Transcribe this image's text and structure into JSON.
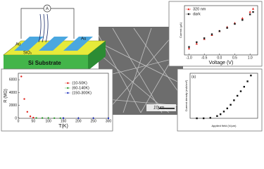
{
  "device": {
    "ammeter": "A",
    "electrode_left": "Au",
    "electrode_right": "Au",
    "oxide": "SiO₂",
    "substrate": "Si Substrate"
  },
  "sem": {
    "scale": "10μm"
  },
  "chart_data": [
    {
      "type": "scatter",
      "x_label": "Voltage (V)",
      "y_label": "Current (μA)",
      "xlim": [
        -1.15,
        1.25
      ],
      "ylim": [
        -1.5,
        1.6
      ],
      "xticks": [
        {
          "value": -1,
          "label": "-1.0"
        },
        -0.5,
        {
          "value": 0,
          "label": "0.0"
        },
        0.5,
        {
          "value": 1,
          "label": "1.0"
        }
      ],
      "legend": "upper-left",
      "series": [
        {
          "name": "320 nm",
          "color": "#e0221b",
          "marker": "triangle",
          "x": [
            -1,
            -0.75,
            -0.5,
            -0.25,
            0,
            0.25,
            0.5,
            0.75,
            1,
            1.1
          ],
          "values": [
            -1.1,
            -0.8,
            -0.5,
            -0.25,
            0,
            0.25,
            0.5,
            0.8,
            1.2,
            1.4
          ]
        },
        {
          "name": "dark",
          "color": "#222222",
          "marker": "square",
          "x": [
            -1,
            -0.75,
            -0.5,
            -0.25,
            0,
            0.25,
            0.5,
            0.75,
            1,
            1.1
          ],
          "values": [
            -1.0,
            -0.7,
            -0.45,
            -0.2,
            0,
            0.2,
            0.45,
            0.7,
            1.05,
            1.2
          ]
        }
      ]
    },
    {
      "type": "scatter",
      "x_label": "T(K)",
      "y_label": "R (MΩ)",
      "xlim": [
        0,
        300
      ],
      "ylim": [
        0,
        7000
      ],
      "xticks": [
        0,
        50,
        100,
        150,
        200,
        250,
        300
      ],
      "yticks": [
        0,
        2000,
        4000,
        6000
      ],
      "legend": "right",
      "series": [
        {
          "name": "(10-50K)",
          "color": "#e0221b",
          "marker": "circle",
          "x": [
            10,
            20,
            30,
            40,
            50
          ],
          "values": [
            6500,
            3000,
            1000,
            300,
            100
          ]
        },
        {
          "name": "(60-140K)",
          "color": "#2e9a2e",
          "marker": "circle",
          "x": [
            60,
            80,
            100,
            120,
            140
          ],
          "values": [
            50,
            40,
            30,
            25,
            20
          ]
        },
        {
          "name": "(150-300K)",
          "color": "#2233bb",
          "marker": "circle",
          "x": [
            150,
            200,
            250,
            300
          ],
          "values": [
            15,
            10,
            8,
            5
          ]
        }
      ]
    },
    {
      "type": "scatter",
      "panel_label": "(a)",
      "x_label": "Applied field (V/μm)",
      "y_label": "Current density (mA/cm²)",
      "xlim": [
        0,
        10
      ],
      "ylim": [
        0,
        1
      ],
      "series": [
        {
          "color": "#111111",
          "marker": "square",
          "x": [
            1,
            2,
            3,
            4,
            4.5,
            5,
            5.5,
            6,
            6.5,
            7,
            7.5,
            8,
            8.5,
            9
          ],
          "values": [
            0,
            0,
            0.01,
            0.05,
            0.09,
            0.15,
            0.22,
            0.3,
            0.4,
            0.5,
            0.6,
            0.7,
            0.82,
            0.95
          ]
        }
      ]
    }
  ]
}
